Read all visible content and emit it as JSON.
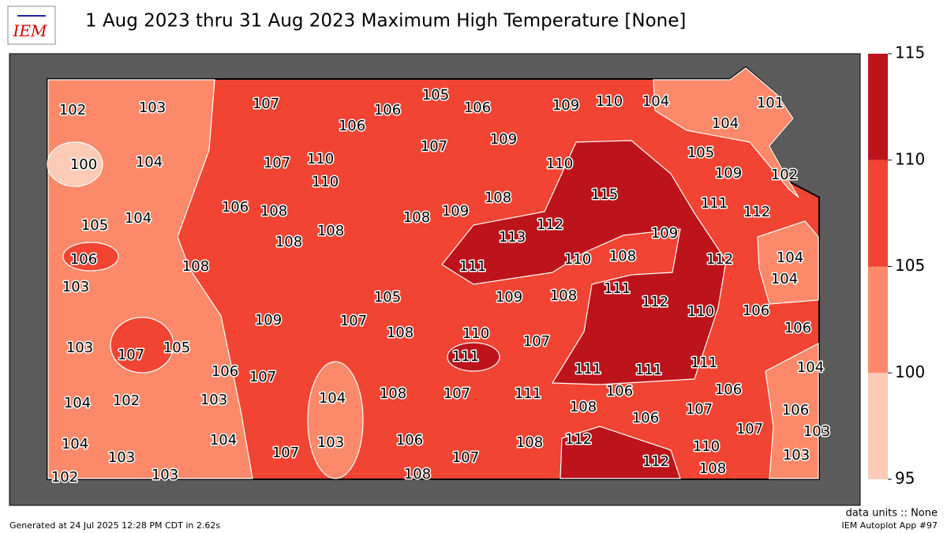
{
  "title": "1 Aug 2023 thru 31 Aug 2023 Maximum High Temperature [None]",
  "logo": "IEM",
  "colorbar": {
    "ticks": [
      95,
      100,
      105,
      110,
      115
    ],
    "colors": [
      "#fdcab5",
      "#fc8a6a",
      "#f14432",
      "#bc141a"
    ]
  },
  "labels": [
    102,
    103,
    107,
    106,
    106,
    105,
    106,
    109,
    110,
    104,
    101,
    104,
    100,
    104,
    107,
    110,
    110,
    107,
    109,
    110,
    105,
    109,
    102,
    106,
    108,
    108,
    108,
    108,
    109,
    108,
    115,
    111,
    112,
    105,
    104,
    112,
    113,
    109,
    106,
    108,
    111,
    110,
    108,
    112,
    104,
    104,
    103,
    109,
    108,
    111,
    112,
    110,
    106,
    105,
    109,
    107,
    108,
    110,
    107,
    106,
    103,
    107,
    105,
    111,
    111,
    111,
    111,
    104,
    106,
    107,
    108,
    107,
    111,
    106,
    106,
    104,
    102,
    103,
    104,
    108,
    106,
    107,
    106,
    107,
    103,
    104,
    103,
    104,
    107,
    103,
    106,
    107,
    108,
    112,
    110,
    103,
    112,
    102,
    103,
    108,
    108
  ],
  "units": "data units :: None",
  "app": "IEM Autoplot App #97",
  "generated": "Generated at 24 Jul 2025 12:28 PM CDT in 2.62s"
}
